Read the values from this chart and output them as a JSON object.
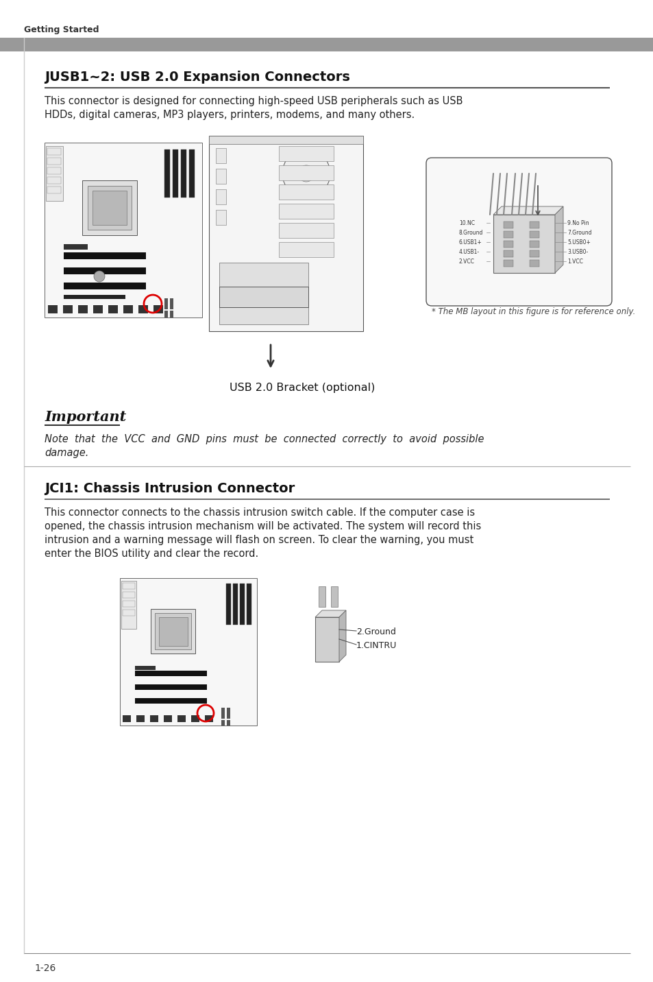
{
  "bg_color": "#ffffff",
  "header_text": "Getting Started",
  "header_bar_color": "#909090",
  "section1_title": "JUSB1~2: USB 2.0 Expansion Connectors",
  "section1_body_line1": "This connector is designed for connecting high-speed USB peripherals such as USB",
  "section1_body_line2": "HDDs, digital cameras, MP3 players, printers, modems, and many others.",
  "usb_bracket_label": "USB 2.0 Bracket (optional)",
  "mb_note": "* The MB layout in this figure is for reference only.",
  "important_label": "Important",
  "important_body_line1": "Note  that  the  VCC  and  GND  pins  must  be  connected  correctly  to  avoid  possible",
  "important_body_line2": "damage.",
  "section2_title": "JCI1: Chassis Intrusion Connector",
  "section2_body_line1": "This connector connects to the chassis intrusion switch cable. If the computer case is",
  "section2_body_line2": "opened, the chassis intrusion mechanism will be activated. The system will record this",
  "section2_body_line3": "intrusion and a warning message will flash on screen. To clear the warning, you must",
  "section2_body_line4": "enter the BIOS utility and clear the record.",
  "pin_labels_left": [
    "10.NC",
    "8.Ground",
    "6.USB1+",
    "4.USB1-",
    "2.VCC"
  ],
  "pin_labels_right": [
    "9.No Pin",
    "7.Ground",
    "5.USB0+",
    "3.USB0-",
    "1.VCC"
  ],
  "jci_label1": "2.Ground",
  "jci_label2": "1.CINTRU",
  "footer_text": "1-26",
  "gray_bar_color": "#999999",
  "text_color": "#222222",
  "border_color": "#888888",
  "red_circle_color": "#dd0000"
}
